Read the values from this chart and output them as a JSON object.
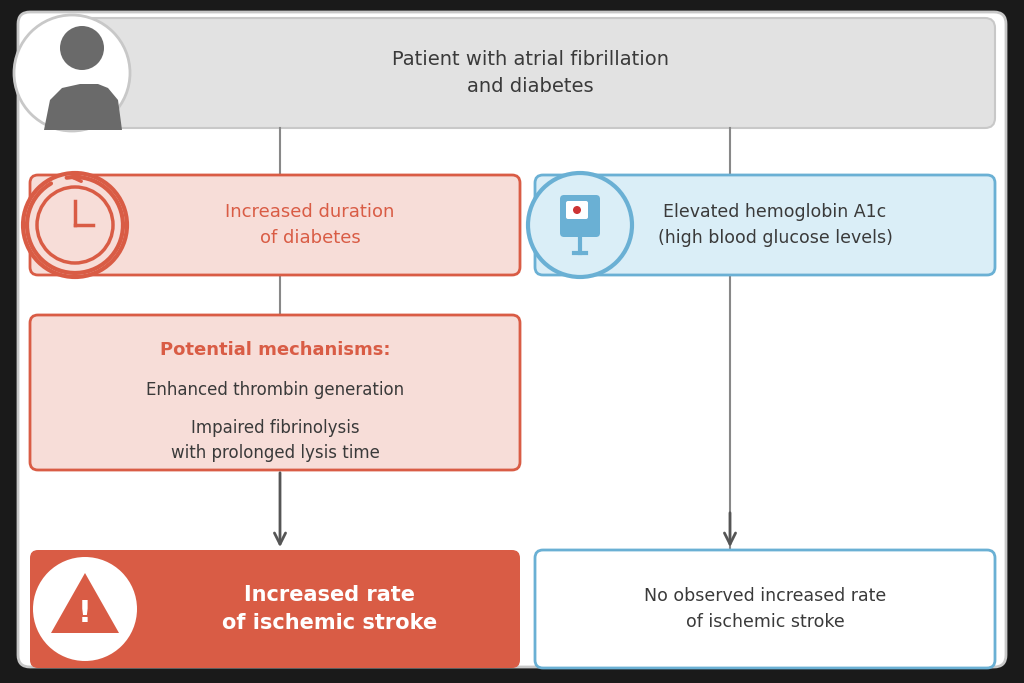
{
  "bg_outer": "#1a1a1a",
  "bg_inner": "#ffffff",
  "gray_box_fill": "#e2e2e2",
  "gray_box_edge": "#c8c8c8",
  "red_border": "#d95c45",
  "light_red_fill": "#f7ddd8",
  "red_fill": "#d95c45",
  "blue_border": "#6ab0d4",
  "light_blue_fill": "#daeef7",
  "top_box_text": "Patient with atrial fibrillation\nand diabetes",
  "left_top_label": "Increased duration\nof diabetes",
  "right_top_label": "Elevated hemoglobin A1c\n(high blood glucose levels)",
  "mechanism_title": "Potential mechanisms:",
  "mechanism_line1": "Enhanced thrombin generation",
  "mechanism_line2": "Impaired fibrinolysis",
  "mechanism_line3": "with prolonged lysis time",
  "left_bottom_label": "Increased rate\nof ischemic stroke",
  "right_bottom_label": "No observed increased rate\nof ischemic stroke",
  "connector_color": "#888888",
  "text_dark": "#3a3a3a",
  "person_color": "#6a6a6a",
  "icon_bg": "#ffffff"
}
